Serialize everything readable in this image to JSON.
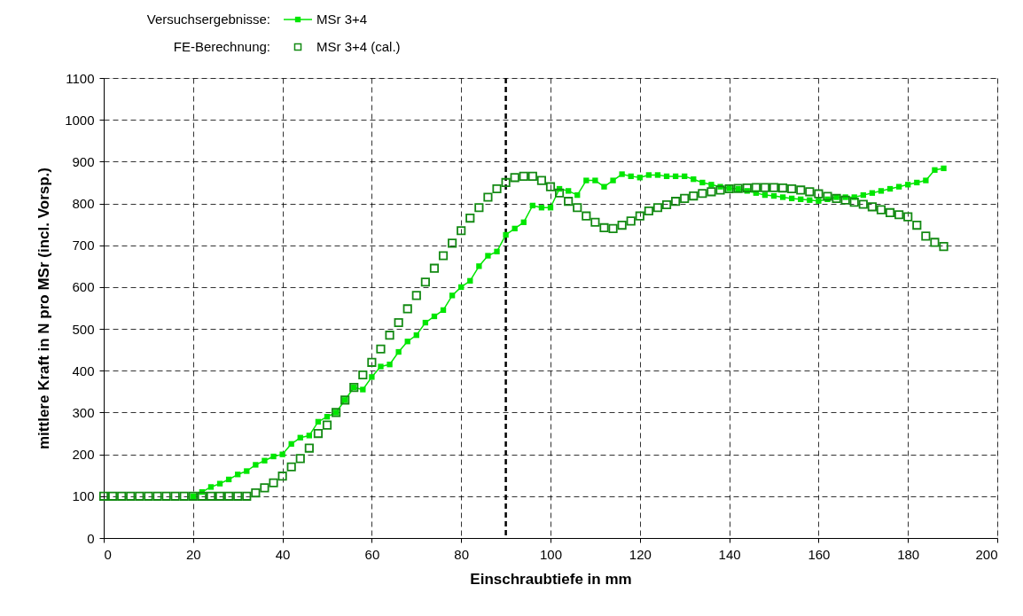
{
  "chart_data": {
    "type": "line",
    "xlabel": "Einschraubtiefe in mm",
    "ylabel": "mittlere Kraft in N pro MSr (incl. Vorsp.)",
    "xlim": [
      0,
      200
    ],
    "xticks": [
      0,
      20,
      40,
      60,
      80,
      100,
      120,
      140,
      160,
      180,
      200
    ],
    "ylim": [
      0,
      1100
    ],
    "yticks": [
      0,
      100,
      200,
      300,
      400,
      500,
      600,
      700,
      800,
      900,
      1000,
      1100
    ],
    "grid": true,
    "legend": "top left",
    "marker": "square",
    "annotations": [
      "Versuchsergebnisse:",
      "FE-Berechnung:"
    ],
    "ref_lines": [
      {
        "axis": "x",
        "value": 90,
        "color": "#000000",
        "line_style": "dashed"
      }
    ],
    "series": [
      {
        "name": "MSr 3+4",
        "color": "#00e600",
        "x": [
          20,
          22,
          24,
          26,
          28,
          30,
          32,
          34,
          36,
          38,
          40,
          42,
          44,
          46,
          48,
          50,
          52,
          54,
          56,
          58,
          60,
          62,
          64,
          66,
          68,
          70,
          72,
          74,
          76,
          78,
          80,
          82,
          84,
          86,
          88,
          90,
          92,
          94,
          96,
          98,
          100,
          102,
          104,
          106,
          108,
          110,
          112,
          114,
          116,
          118,
          120,
          122,
          124,
          126,
          128,
          130,
          132,
          134,
          136,
          138,
          140,
          142,
          144,
          146,
          148,
          150,
          152,
          154,
          156,
          158,
          160,
          162,
          164,
          166,
          168,
          170,
          172,
          174,
          176,
          178,
          180,
          182,
          184,
          186,
          188
        ],
        "values": [
          100,
          110,
          122,
          130,
          140,
          152,
          160,
          175,
          185,
          195,
          200,
          225,
          240,
          245,
          278,
          290,
          300,
          330,
          360,
          355,
          385,
          410,
          415,
          445,
          470,
          485,
          515,
          530,
          545,
          580,
          600,
          615,
          650,
          675,
          685,
          725,
          740,
          755,
          795,
          790,
          790,
          835,
          830,
          820,
          855,
          855,
          840,
          855,
          870,
          865,
          862,
          868,
          868,
          865,
          865,
          865,
          858,
          850,
          845,
          840,
          836,
          835,
          830,
          825,
          820,
          818,
          815,
          812,
          810,
          808,
          806,
          810,
          815,
          815,
          815,
          820,
          825,
          830,
          835,
          840,
          845,
          850,
          855,
          880,
          884
        ]
      },
      {
        "name": "MSr 3+4 (cal.)",
        "type": "scatter",
        "color": "#138a13",
        "x": [
          0,
          2,
          4,
          6,
          8,
          10,
          12,
          14,
          16,
          18,
          20,
          22,
          24,
          26,
          28,
          30,
          32,
          34,
          36,
          38,
          40,
          42,
          44,
          46,
          48,
          50,
          52,
          54,
          56,
          58,
          60,
          62,
          64,
          66,
          68,
          70,
          72,
          74,
          76,
          78,
          80,
          82,
          84,
          86,
          88,
          90,
          92,
          94,
          96,
          98,
          100,
          102,
          104,
          106,
          108,
          110,
          112,
          114,
          116,
          118,
          120,
          122,
          124,
          126,
          128,
          130,
          132,
          134,
          136,
          138,
          140,
          142,
          144,
          146,
          148,
          150,
          152,
          154,
          156,
          158,
          160,
          162,
          164,
          166,
          168,
          170,
          172,
          174,
          176,
          178,
          180,
          182,
          184,
          186,
          188
        ],
        "values": [
          100,
          100,
          100,
          100,
          100,
          100,
          100,
          100,
          100,
          100,
          100,
          100,
          100,
          100,
          100,
          100,
          100,
          108,
          120,
          132,
          148,
          170,
          190,
          215,
          250,
          270,
          300,
          330,
          360,
          390,
          420,
          452,
          485,
          515,
          548,
          580,
          612,
          645,
          675,
          705,
          735,
          765,
          790,
          815,
          835,
          850,
          862,
          865,
          865,
          855,
          840,
          825,
          805,
          790,
          770,
          755,
          742,
          740,
          748,
          758,
          770,
          782,
          790,
          797,
          805,
          812,
          818,
          824,
          828,
          832,
          835,
          836,
          837,
          838,
          838,
          838,
          837,
          835,
          832,
          828,
          823,
          817,
          812,
          808,
          803,
          798,
          792,
          785,
          778,
          773,
          768,
          748,
          722,
          707,
          697
        ]
      }
    ]
  }
}
